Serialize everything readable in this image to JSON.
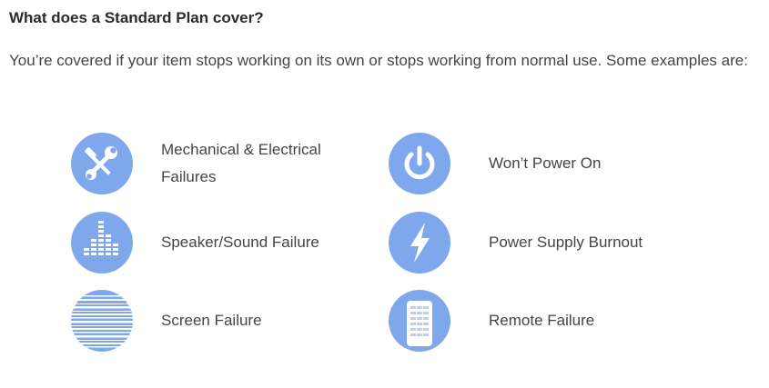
{
  "section": {
    "heading": "What does a Standard Plan cover?",
    "intro": "You’re covered if your item stops working on its own or stops working from normal use. Some examples are:"
  },
  "items": [
    {
      "label": "Mechanical & Electrical Failures",
      "icon": "tools-icon"
    },
    {
      "label": "Won’t Power On",
      "icon": "power-icon"
    },
    {
      "label": "Speaker/Sound Failure",
      "icon": "sound-equalizer-icon"
    },
    {
      "label": "Power Supply Burnout",
      "icon": "lightning-bolt-icon"
    },
    {
      "label": "Screen Failure",
      "icon": "screen-static-icon"
    },
    {
      "label": "Remote Failure",
      "icon": "remote-control-icon"
    }
  ],
  "colors": {
    "icon_circle": "#7fa8ec",
    "icon_glyph": "#ffffff"
  }
}
